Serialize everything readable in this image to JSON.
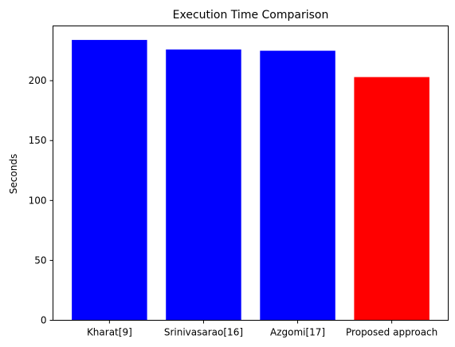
{
  "chart_data": {
    "type": "bar",
    "title": "Execution Time Comparison",
    "xlabel": "",
    "ylabel": "Seconds",
    "categories": [
      "Kharat[9]",
      "Srinivasarao[16]",
      "Azgomi[17]",
      "Proposed approach"
    ],
    "values": [
      234,
      226,
      225,
      203
    ],
    "bar_colors": [
      "#0000ff",
      "#0000ff",
      "#0000ff",
      "#ff0000"
    ],
    "ylim": [
      0,
      245.7
    ],
    "yticks": [
      0,
      50,
      100,
      150,
      200
    ],
    "grid": false,
    "legend": "none"
  }
}
